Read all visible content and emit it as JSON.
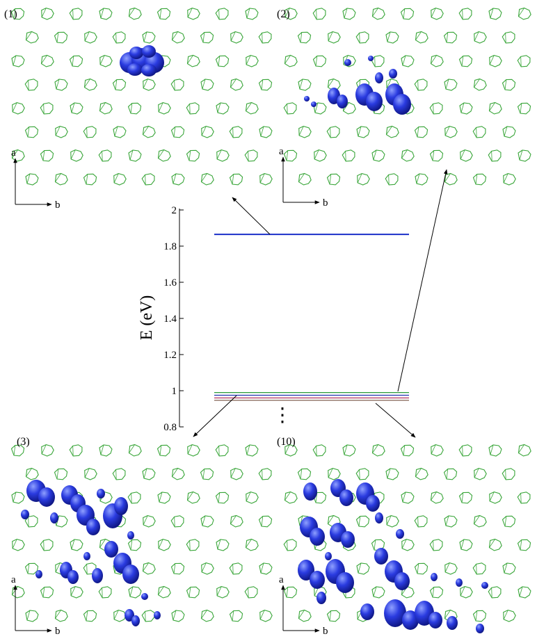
{
  "panels": [
    {
      "id": "p1",
      "label": "(1)",
      "axis_a": "a",
      "axis_b": "b"
    },
    {
      "id": "p2",
      "label": "(2)",
      "axis_a": "a",
      "axis_b": "b"
    },
    {
      "id": "p3",
      "label": "(3)",
      "axis_a": "a",
      "axis_b": "b"
    },
    {
      "id": "p10",
      "label": "(10)",
      "axis_a": "a",
      "axis_b": "b"
    }
  ],
  "energy_axis": {
    "label": "E (eV)",
    "ticks": [
      "2",
      "1.8",
      "1.6",
      "1.4",
      "1.2",
      "1",
      "0.8"
    ],
    "ylim": [
      0.8,
      2.0
    ],
    "ellipsis": "⋮"
  },
  "energy_levels": [
    {
      "energy": 1.865,
      "color": "#1a2fc8"
    },
    {
      "energy": 0.99,
      "color": "#2a9a3a"
    },
    {
      "energy": 0.975,
      "color": "#2030b0"
    },
    {
      "energy": 0.96,
      "color": "#b03060"
    },
    {
      "energy": 0.947,
      "color": "#806050"
    }
  ],
  "colors": {
    "molecule": "#3aa63a",
    "orbital": "#2230d8",
    "text": "#000000"
  }
}
